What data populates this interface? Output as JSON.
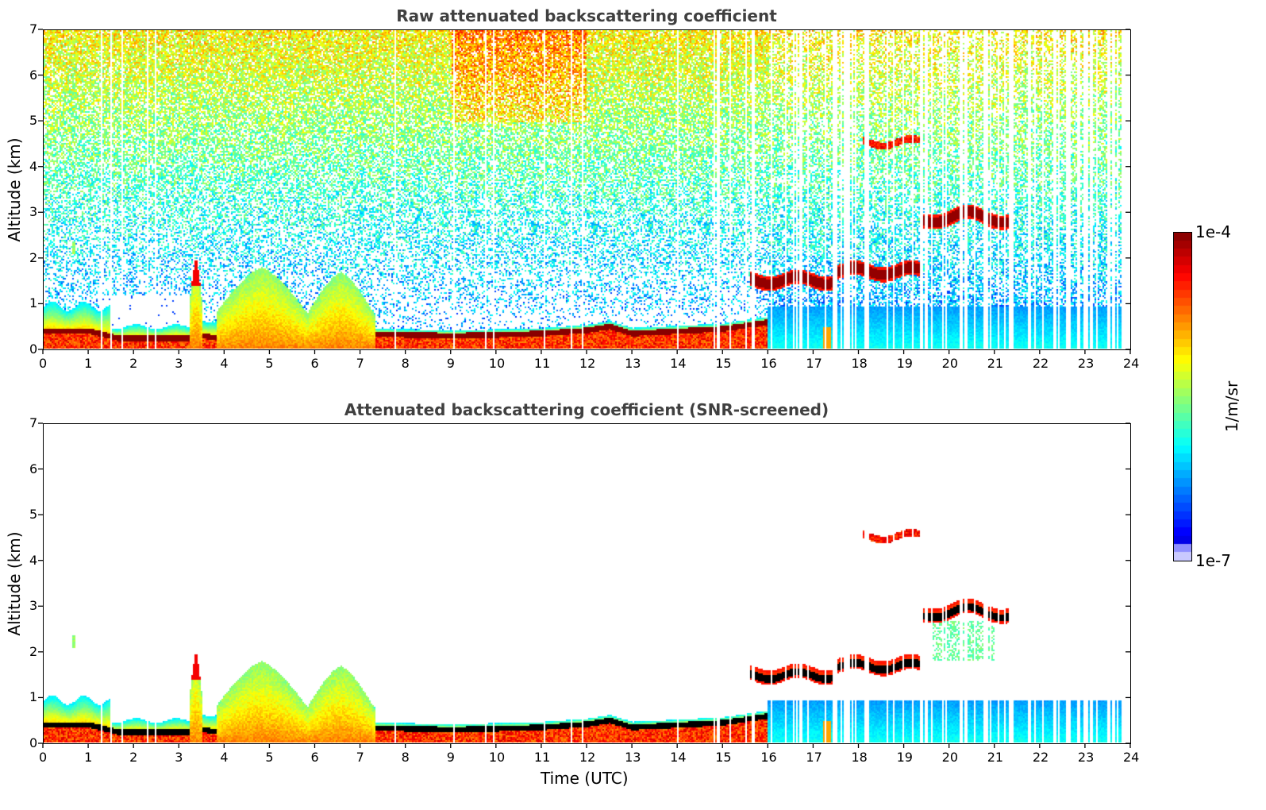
{
  "chart_data": [
    {
      "type": "heatmap",
      "title": "Raw attenuated backscattering coefficient",
      "xlabel": "",
      "ylabel": "Altitude (km)",
      "xlim": [
        0,
        24
      ],
      "ylim": [
        0,
        7
      ],
      "xticks": [
        "0",
        "1",
        "2",
        "3",
        "4",
        "5",
        "6",
        "7",
        "8",
        "9",
        "10",
        "11",
        "12",
        "13",
        "14",
        "15",
        "16",
        "17",
        "18",
        "19",
        "20",
        "21",
        "22",
        "23",
        "24"
      ],
      "yticks": [
        "0",
        "1",
        "2",
        "3",
        "4",
        "5",
        "6",
        "7"
      ],
      "screened": false,
      "features": [
        {
          "kind": "boundary-layer-top",
          "t": [
            0,
            1,
            1.6,
            2.5,
            3.2,
            3.5,
            4,
            5,
            6,
            7,
            8,
            9,
            10,
            11,
            12,
            12.5,
            13,
            14,
            15,
            16,
            17,
            18,
            19,
            20,
            21,
            22,
            23,
            23.8
          ],
          "alt": [
            0.4,
            0.4,
            0.25,
            0.25,
            0.25,
            0.3,
            0.22,
            0.28,
            0.3,
            0.35,
            0.32,
            0.3,
            0.32,
            0.35,
            0.42,
            0.5,
            0.35,
            0.4,
            0.45,
            0.6,
            0.6,
            0.6,
            0.6,
            0.6,
            0.6,
            0.6,
            0.6,
            0.6
          ]
        },
        {
          "kind": "cloud",
          "t_start": 15.6,
          "t_end": 17.5,
          "alt": 1.52,
          "value": "high"
        },
        {
          "kind": "cloud",
          "t_start": 17.5,
          "t_end": 19.4,
          "alt": 1.72,
          "value": "high"
        },
        {
          "kind": "cloud",
          "t_start": 19.4,
          "t_end": 21.4,
          "alt": 2.8,
          "value": "high"
        },
        {
          "kind": "cloud",
          "t_start": 18.1,
          "t_end": 19.4,
          "alt": 4.55,
          "value": "medium"
        },
        {
          "kind": "aerosol-plume",
          "t_start": 3.2,
          "t_end": 3.5,
          "alt_top": 2.0
        },
        {
          "kind": "aerosol-plume",
          "t_start": 3.8,
          "t_end": 5.8,
          "alt_top": 1.8
        },
        {
          "kind": "aerosol-plume",
          "t_start": 5.8,
          "t_end": 7.3,
          "alt_top": 1.7
        },
        {
          "kind": "aerosol-plume",
          "t_start": 0.55,
          "t_end": 0.75,
          "alt_top": 2.5
        }
      ]
    },
    {
      "type": "heatmap",
      "title": "Attenuated backscattering coefficient (SNR-screened)",
      "xlabel": "Time (UTC)",
      "ylabel": "Altitude (km)",
      "xlim": [
        0,
        24
      ],
      "ylim": [
        0,
        7
      ],
      "xticks": [
        "0",
        "1",
        "2",
        "3",
        "4",
        "5",
        "6",
        "7",
        "8",
        "9",
        "10",
        "11",
        "12",
        "13",
        "14",
        "15",
        "16",
        "17",
        "18",
        "19",
        "20",
        "21",
        "22",
        "23",
        "24"
      ],
      "yticks": [
        "0",
        "1",
        "2",
        "3",
        "4",
        "5",
        "6",
        "7"
      ],
      "screened": true
    }
  ],
  "colorbar": {
    "label": "1/m/sr",
    "max_label": "1e-4",
    "min_label": "1e-7",
    "colormap": "jet",
    "scale": "log"
  }
}
